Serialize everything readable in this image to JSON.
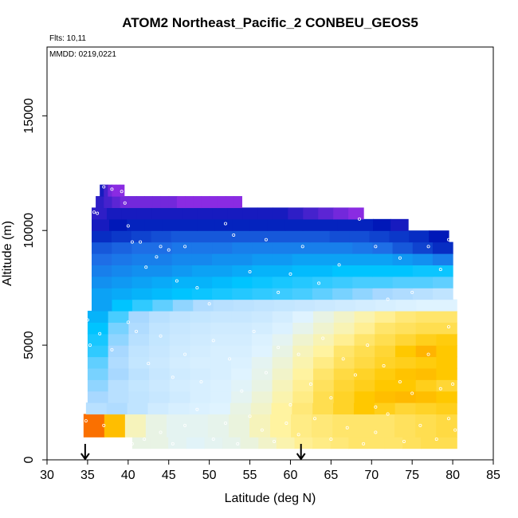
{
  "chart_data": {
    "type": "heatmap",
    "title": "ATOM2 Northeast_Pacific_2 CONBEU_GEOS5",
    "annotations": {
      "flights": "Flts: 10,11",
      "dates": "MMDD: 0219,0221"
    },
    "xlabel": "Latitude (deg N)",
    "ylabel": "Altitude (m)",
    "xlim": [
      30,
      85
    ],
    "ylim": [
      0,
      18000
    ],
    "xticks": [
      30,
      35,
      40,
      45,
      50,
      55,
      60,
      65,
      70,
      75,
      80,
      85
    ],
    "xtick_labels": [
      "30",
      "35",
      "40",
      "45",
      "50",
      "55",
      "60",
      "65",
      "70",
      "75",
      "80",
      "85"
    ],
    "yticks": [
      0,
      5000,
      10000,
      15000
    ],
    "ytick_labels": [
      "0",
      "5000",
      "10000",
      "15000"
    ],
    "grid": false,
    "markers": [
      {
        "type": "arrow-down",
        "latitude": 34.7
      },
      {
        "type": "arrow-down",
        "latitude": 61.3
      }
    ],
    "colors": {
      "low": "#e80000",
      "mid": "#fff3a0",
      "neutral": "#dff3ff",
      "high": "#00c4ff",
      "top": "#0018b8",
      "peak": "#8a2be2"
    },
    "layers": [
      {
        "alt_bottom": 500,
        "alt_top": 1000,
        "lat_start": 40.5,
        "lat_end": 80.5,
        "values": [
          0.44,
          0.44,
          0.46,
          0.47,
          0.46,
          0.45,
          0.43,
          0.4,
          0.36,
          0.33,
          0.32,
          0.31,
          0.3,
          0.3,
          0.3,
          0.29,
          0.28,
          0.28
        ]
      },
      {
        "alt_bottom": 1000,
        "alt_top": 2000,
        "lat_start": 34.5,
        "lat_end": 80.5,
        "values": [
          0.08,
          0.2,
          0.38,
          0.44,
          0.46,
          0.46,
          0.45,
          0.43,
          0.38,
          0.34,
          0.32,
          0.31,
          0.3,
          0.3,
          0.3,
          0.29,
          0.28,
          0.27
        ]
      },
      {
        "alt_bottom": 2000,
        "alt_top": 2500,
        "lat_start": 34.8,
        "lat_end": 80.5,
        "values": [
          0.58,
          0.6,
          0.56,
          0.52,
          0.5,
          0.49,
          0.48,
          0.44,
          0.4,
          0.34,
          0.31,
          0.28,
          0.25,
          0.22,
          0.24,
          0.26,
          0.25,
          0.24
        ]
      },
      {
        "alt_bottom": 2500,
        "alt_top": 3000,
        "lat_start": 35.0,
        "lat_end": 80.5,
        "values": [
          0.62,
          0.58,
          0.56,
          0.54,
          0.52,
          0.5,
          0.49,
          0.46,
          0.42,
          0.36,
          0.32,
          0.28,
          0.25,
          0.22,
          0.2,
          0.19,
          0.2,
          0.22
        ]
      },
      {
        "alt_bottom": 3000,
        "alt_top": 3500,
        "lat_start": 35.0,
        "lat_end": 80.5,
        "values": [
          0.64,
          0.58,
          0.55,
          0.53,
          0.51,
          0.5,
          0.49,
          0.47,
          0.44,
          0.38,
          0.33,
          0.29,
          0.26,
          0.24,
          0.22,
          0.22,
          0.24,
          0.26
        ]
      },
      {
        "alt_bottom": 3500,
        "alt_top": 4000,
        "lat_start": 35.0,
        "lat_end": 80.5,
        "values": [
          0.66,
          0.62,
          0.57,
          0.54,
          0.52,
          0.51,
          0.5,
          0.48,
          0.45,
          0.4,
          0.34,
          0.3,
          0.27,
          0.25,
          0.23,
          0.21,
          0.2,
          0.22
        ]
      },
      {
        "alt_bottom": 4000,
        "alt_top": 4500,
        "lat_start": 35.0,
        "lat_end": 80.5,
        "values": [
          0.68,
          0.6,
          0.55,
          0.53,
          0.51,
          0.5,
          0.5,
          0.49,
          0.46,
          0.42,
          0.36,
          0.32,
          0.29,
          0.27,
          0.25,
          0.24,
          0.23,
          0.22
        ]
      },
      {
        "alt_bottom": 4500,
        "alt_top": 5000,
        "lat_start": 35.0,
        "lat_end": 80.5,
        "values": [
          0.72,
          0.62,
          0.56,
          0.54,
          0.52,
          0.51,
          0.5,
          0.5,
          0.48,
          0.44,
          0.38,
          0.34,
          0.3,
          0.28,
          0.26,
          0.22,
          0.18,
          0.22
        ]
      },
      {
        "alt_bottom": 5000,
        "alt_top": 5500,
        "lat_start": 35.0,
        "lat_end": 80.5,
        "values": [
          0.74,
          0.64,
          0.58,
          0.55,
          0.53,
          0.52,
          0.51,
          0.51,
          0.49,
          0.46,
          0.41,
          0.37,
          0.33,
          0.3,
          0.28,
          0.26,
          0.24,
          0.23
        ]
      },
      {
        "alt_bottom": 5500,
        "alt_top": 6000,
        "lat_start": 35.0,
        "lat_end": 80.5,
        "values": [
          0.76,
          0.66,
          0.6,
          0.56,
          0.54,
          0.53,
          0.52,
          0.52,
          0.51,
          0.49,
          0.45,
          0.41,
          0.37,
          0.33,
          0.3,
          0.29,
          0.28,
          0.28
        ]
      },
      {
        "alt_bottom": 6000,
        "alt_top": 6500,
        "lat_start": 35.0,
        "lat_end": 80.5,
        "values": [
          0.78,
          0.7,
          0.62,
          0.58,
          0.56,
          0.55,
          0.54,
          0.54,
          0.53,
          0.51,
          0.48,
          0.44,
          0.4,
          0.36,
          0.33,
          0.31,
          0.3,
          0.3
        ]
      },
      {
        "alt_bottom": 6500,
        "alt_top": 7000,
        "lat_start": 35.5,
        "lat_end": 80.5,
        "values": [
          0.8,
          0.76,
          0.72,
          0.68,
          0.64,
          0.6,
          0.58,
          0.57,
          0.56,
          0.55,
          0.54,
          0.53,
          0.52,
          0.51,
          0.5,
          0.49,
          0.48,
          0.48
        ]
      },
      {
        "alt_bottom": 7000,
        "alt_top": 7500,
        "lat_start": 35.5,
        "lat_end": 80.0,
        "values": [
          0.8,
          0.79,
          0.78,
          0.77,
          0.76,
          0.75,
          0.74,
          0.73,
          0.72,
          0.71,
          0.7,
          0.68,
          0.66,
          0.64,
          0.62,
          0.6,
          0.58,
          0.56
        ]
      },
      {
        "alt_bottom": 7500,
        "alt_top": 8000,
        "lat_start": 35.5,
        "lat_end": 80.0,
        "values": [
          0.82,
          0.81,
          0.8,
          0.79,
          0.78,
          0.78,
          0.77,
          0.76,
          0.75,
          0.74,
          0.73,
          0.72,
          0.71,
          0.7,
          0.7,
          0.69,
          0.69,
          0.68
        ]
      },
      {
        "alt_bottom": 8000,
        "alt_top": 8500,
        "lat_start": 35.5,
        "lat_end": 80.0,
        "values": [
          0.84,
          0.83,
          0.82,
          0.82,
          0.81,
          0.8,
          0.8,
          0.79,
          0.78,
          0.78,
          0.77,
          0.77,
          0.76,
          0.76,
          0.76,
          0.76,
          0.75,
          0.75
        ]
      },
      {
        "alt_bottom": 8500,
        "alt_top": 9000,
        "lat_start": 35.5,
        "lat_end": 80.0,
        "values": [
          0.86,
          0.85,
          0.84,
          0.84,
          0.83,
          0.83,
          0.82,
          0.82,
          0.81,
          0.81,
          0.8,
          0.8,
          0.8,
          0.8,
          0.8,
          0.81,
          0.82,
          0.84
        ]
      },
      {
        "alt_bottom": 9000,
        "alt_top": 9500,
        "lat_start": 35.5,
        "lat_end": 80.0,
        "values": [
          0.88,
          0.87,
          0.86,
          0.86,
          0.85,
          0.85,
          0.85,
          0.84,
          0.84,
          0.84,
          0.84,
          0.84,
          0.84,
          0.85,
          0.86,
          0.88,
          0.9,
          0.92
        ]
      },
      {
        "alt_bottom": 9500,
        "alt_top": 10000,
        "lat_start": 35.5,
        "lat_end": 79.5,
        "values": [
          0.92,
          0.91,
          0.9,
          0.89,
          0.88,
          0.88,
          0.88,
          0.88,
          0.88,
          0.88,
          0.88,
          0.88,
          0.89,
          0.89,
          0.9,
          0.91,
          0.92,
          0.94
        ]
      },
      {
        "alt_bottom": 10000,
        "alt_top": 10500,
        "lat_start": 35.5,
        "lat_end": 74.5,
        "values": [
          0.95,
          0.94,
          0.93,
          0.93,
          0.93,
          0.93,
          0.93,
          0.93,
          0.93,
          0.93,
          0.93,
          0.93,
          0.93,
          0.93,
          0.93,
          0.93,
          0.94,
          0.95
        ]
      },
      {
        "alt_bottom": 10500,
        "alt_top": 11000,
        "lat_start": 35.5,
        "lat_end": 69.0,
        "values": [
          0.96,
          0.95,
          0.95,
          0.95,
          0.95,
          0.95,
          0.95,
          0.95,
          0.95,
          0.95,
          0.95,
          0.95,
          0.95,
          0.96,
          0.97,
          0.98,
          0.99,
          1.0
        ]
      },
      {
        "alt_bottom": 11000,
        "alt_top": 11500,
        "lat_start": 36.0,
        "lat_end": 54.0,
        "values": [
          0.96,
          0.97,
          0.98,
          0.99,
          0.99,
          0.99,
          0.99,
          0.99,
          0.99,
          0.99,
          1.0,
          1.0,
          1.0,
          1.0,
          1.0,
          1.0,
          1.0,
          1.0
        ]
      },
      {
        "alt_bottom": 11500,
        "alt_top": 12000,
        "lat_start": 36.5,
        "lat_end": 39.5,
        "values": [
          0.95,
          0.97,
          0.99,
          1.0,
          1.0,
          1.0
        ]
      }
    ],
    "observations": [
      [
        35.8,
        10800
      ],
      [
        36.2,
        10750
      ],
      [
        37.0,
        11900
      ],
      [
        38.0,
        11800
      ],
      [
        39.2,
        11700
      ],
      [
        39.6,
        11200
      ],
      [
        40.0,
        10200
      ],
      [
        40.5,
        9500
      ],
      [
        41.5,
        9500
      ],
      [
        42.2,
        8400
      ],
      [
        43.5,
        8850
      ],
      [
        44.0,
        9300
      ],
      [
        45.0,
        9150
      ],
      [
        46.0,
        7800
      ],
      [
        47.0,
        9300
      ],
      [
        48.5,
        7500
      ],
      [
        50.0,
        6800
      ],
      [
        52.0,
        10300
      ],
      [
        53.0,
        9800
      ],
      [
        55.0,
        8200
      ],
      [
        57.0,
        9600
      ],
      [
        58.5,
        7300
      ],
      [
        60.0,
        8100
      ],
      [
        61.5,
        9300
      ],
      [
        63.5,
        7700
      ],
      [
        66.0,
        8500
      ],
      [
        68.5,
        10500
      ],
      [
        70.5,
        9300
      ],
      [
        72.0,
        7000
      ],
      [
        73.5,
        8800
      ],
      [
        75.0,
        7300
      ],
      [
        77.0,
        9300
      ],
      [
        78.5,
        8300
      ],
      [
        79.5,
        9600
      ],
      [
        35.0,
        6100
      ],
      [
        35.3,
        5000
      ],
      [
        36.5,
        5500
      ],
      [
        38.0,
        4800
      ],
      [
        40.0,
        6000
      ],
      [
        41.0,
        5600
      ],
      [
        42.5,
        4200
      ],
      [
        44.0,
        5400
      ],
      [
        45.5,
        3600
      ],
      [
        47.0,
        4600
      ],
      [
        49.0,
        3400
      ],
      [
        50.5,
        5200
      ],
      [
        52.5,
        4400
      ],
      [
        54.0,
        3000
      ],
      [
        55.5,
        5600
      ],
      [
        57.0,
        3800
      ],
      [
        58.5,
        4900
      ],
      [
        60.0,
        2400
      ],
      [
        61.0,
        4600
      ],
      [
        62.5,
        3300
      ],
      [
        64.0,
        5300
      ],
      [
        65.0,
        2700
      ],
      [
        66.5,
        4400
      ],
      [
        68.0,
        3700
      ],
      [
        69.5,
        5000
      ],
      [
        70.5,
        2300
      ],
      [
        71.5,
        4100
      ],
      [
        73.5,
        3400
      ],
      [
        75.0,
        2900
      ],
      [
        77.0,
        4600
      ],
      [
        78.5,
        3100
      ],
      [
        80.0,
        3300
      ],
      [
        79.5,
        5800
      ],
      [
        34.8,
        1700
      ],
      [
        37.0,
        1500
      ],
      [
        40.5,
        700
      ],
      [
        42.0,
        900
      ],
      [
        44.0,
        1200
      ],
      [
        45.5,
        700
      ],
      [
        47.0,
        1500
      ],
      [
        48.5,
        2200
      ],
      [
        50.5,
        900
      ],
      [
        52.0,
        1600
      ],
      [
        53.5,
        700
      ],
      [
        55.0,
        1900
      ],
      [
        56.5,
        1300
      ],
      [
        58.0,
        800
      ],
      [
        59.5,
        1600
      ],
      [
        61.0,
        1100
      ],
      [
        63.0,
        1800
      ],
      [
        65.0,
        900
      ],
      [
        67.0,
        1400
      ],
      [
        69.0,
        700
      ],
      [
        70.5,
        1200
      ],
      [
        72.0,
        2000
      ],
      [
        74.0,
        800
      ],
      [
        76.0,
        1500
      ],
      [
        78.0,
        900
      ],
      [
        79.5,
        1800
      ],
      [
        80.3,
        1300
      ]
    ]
  }
}
